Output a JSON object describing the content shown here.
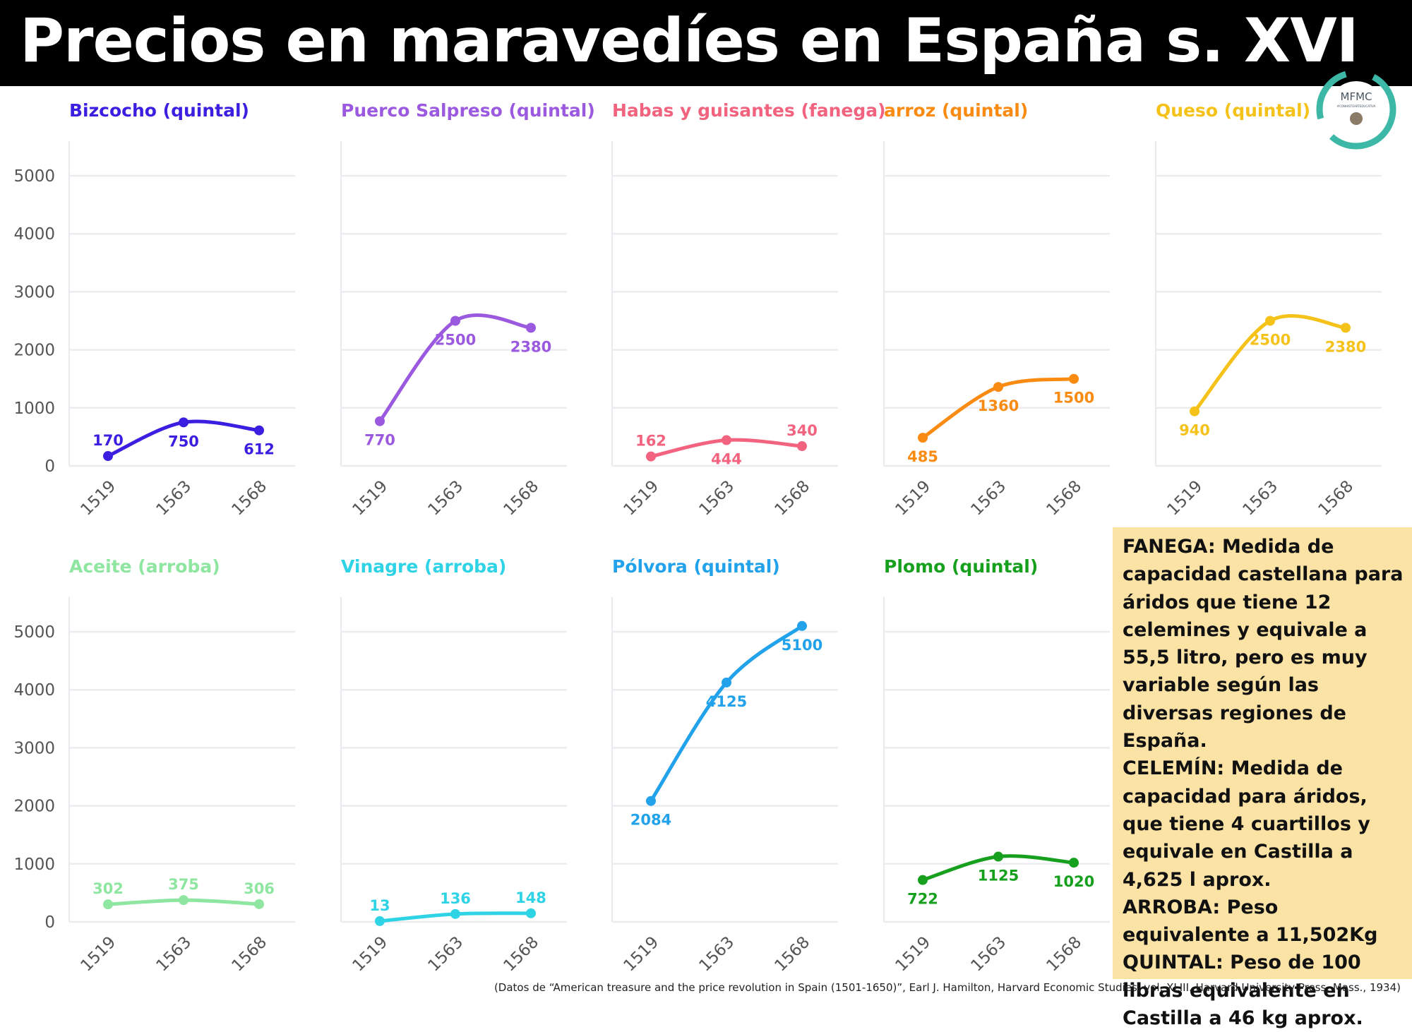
{
  "title": "Precios en maravedíes en España s. XVI",
  "logo": {
    "text": "MFMC",
    "subtext": "#CONHISTOARTEDUCATIVA",
    "icon": "wreath-avatar-icon"
  },
  "chart_data": [
    {
      "type": "line",
      "title": "Bizcocho (quintal)",
      "color": "#3a1fe0",
      "x": [
        "1519",
        "1563",
        "1568"
      ],
      "values": [
        170,
        750,
        612
      ],
      "ylim": [
        0,
        5600
      ],
      "yticks": [
        "0",
        "1000",
        "2000",
        "3000",
        "4000",
        "5000"
      ],
      "grid": true,
      "labels": [
        "170",
        "750",
        "612"
      ]
    },
    {
      "type": "line",
      "title": "Puerco Salpreso (quintal)",
      "color": "#9b59e0",
      "x": [
        "1519",
        "1563",
        "1568"
      ],
      "values": [
        770,
        2500,
        2380
      ],
      "ylim": [
        0,
        5600
      ],
      "yticks": [
        "0",
        "1000",
        "2000",
        "3000",
        "4000",
        "5000"
      ],
      "grid": true,
      "labels": [
        "770",
        "2500",
        "2380"
      ]
    },
    {
      "type": "line",
      "title": "Habas y guisantes (fanega)",
      "color": "#f2637f",
      "x": [
        "1519",
        "1563",
        "1568"
      ],
      "values": [
        162,
        444,
        340
      ],
      "ylim": [
        0,
        5600
      ],
      "yticks": [
        "0",
        "1000",
        "2000",
        "3000",
        "4000",
        "5000"
      ],
      "grid": true,
      "labels": [
        "162",
        "444",
        "340"
      ]
    },
    {
      "type": "line",
      "title": "arroz (quintal)",
      "color": "#f98a12",
      "x": [
        "1519",
        "1563",
        "1568"
      ],
      "values": [
        485,
        1360,
        1500
      ],
      "ylim": [
        0,
        5600
      ],
      "yticks": [
        "0",
        "1000",
        "2000",
        "3000",
        "4000",
        "5000"
      ],
      "grid": true,
      "labels": [
        "485",
        "1360",
        "1500"
      ]
    },
    {
      "type": "line",
      "title": "Queso (quintal)",
      "color": "#f5c21a",
      "x": [
        "1519",
        "1563",
        "1568"
      ],
      "values": [
        940,
        2500,
        2380
      ],
      "ylim": [
        0,
        5600
      ],
      "yticks": [
        "0",
        "1000",
        "2000",
        "3000",
        "4000",
        "5000"
      ],
      "grid": true,
      "labels": [
        "940",
        "2500",
        "2380"
      ]
    },
    {
      "type": "line",
      "title": "Aceite (arroba)",
      "color": "#8ee6a0",
      "x": [
        "1519",
        "1563",
        "1568"
      ],
      "values": [
        302,
        375,
        306
      ],
      "ylim": [
        0,
        5600
      ],
      "yticks": [
        "0",
        "1000",
        "2000",
        "3000",
        "4000",
        "5000"
      ],
      "grid": true,
      "labels": [
        "302",
        "375",
        "306"
      ]
    },
    {
      "type": "line",
      "title": "Vinagre (arroba)",
      "color": "#2fd3e6",
      "x": [
        "1519",
        "1563",
        "1568"
      ],
      "values": [
        13,
        136,
        148
      ],
      "ylim": [
        0,
        5600
      ],
      "yticks": [
        "0",
        "1000",
        "2000",
        "3000",
        "4000",
        "5000"
      ],
      "grid": true,
      "labels": [
        "13",
        "136",
        "148"
      ]
    },
    {
      "type": "line",
      "title": "Pólvora (quintal)",
      "color": "#22a2ea",
      "x": [
        "1519",
        "1563",
        "1568"
      ],
      "values": [
        2084,
        4125,
        5100
      ],
      "ylim": [
        0,
        5600
      ],
      "yticks": [
        "0",
        "1000",
        "2000",
        "3000",
        "4000",
        "5000"
      ],
      "grid": true,
      "labels": [
        "2084",
        "4125",
        "5100"
      ]
    },
    {
      "type": "line",
      "title": "Plomo (quintal)",
      "color": "#16a01e",
      "x": [
        "1519",
        "1563",
        "1568"
      ],
      "values": [
        722,
        1125,
        1020
      ],
      "ylim": [
        0,
        5600
      ],
      "yticks": [
        "0",
        "1000",
        "2000",
        "3000",
        "4000",
        "5000"
      ],
      "grid": true,
      "labels": [
        "722",
        "1125",
        "1020"
      ]
    }
  ],
  "notes": [
    {
      "term": "FANEGA:",
      "text": "Medida de capacidad castellana para áridos que tiene 12 celemines y equivale a 55,5 litro, pero es muy variable según las diversas regiones de España."
    },
    {
      "term": "CELEMÍN:",
      "text": "Medida de capacidad para áridos, que tiene 4 cuartillos y equivale en Castilla a 4,625 l aprox."
    },
    {
      "term": "ARROBA:",
      "text": "Peso equivalente a 11,502Kg"
    },
    {
      "term": "QUINTAL:",
      "text": "Peso de 100 libras equivalente en Castilla a 46 kg aprox."
    }
  ],
  "source": "(Datos de “American treasure and the price revolution in Spain (1501-1650)”, Earl J. Hamilton, Harvard Economic Studies, vol. XLIII. Harvard University Press, Mass., 1934)"
}
